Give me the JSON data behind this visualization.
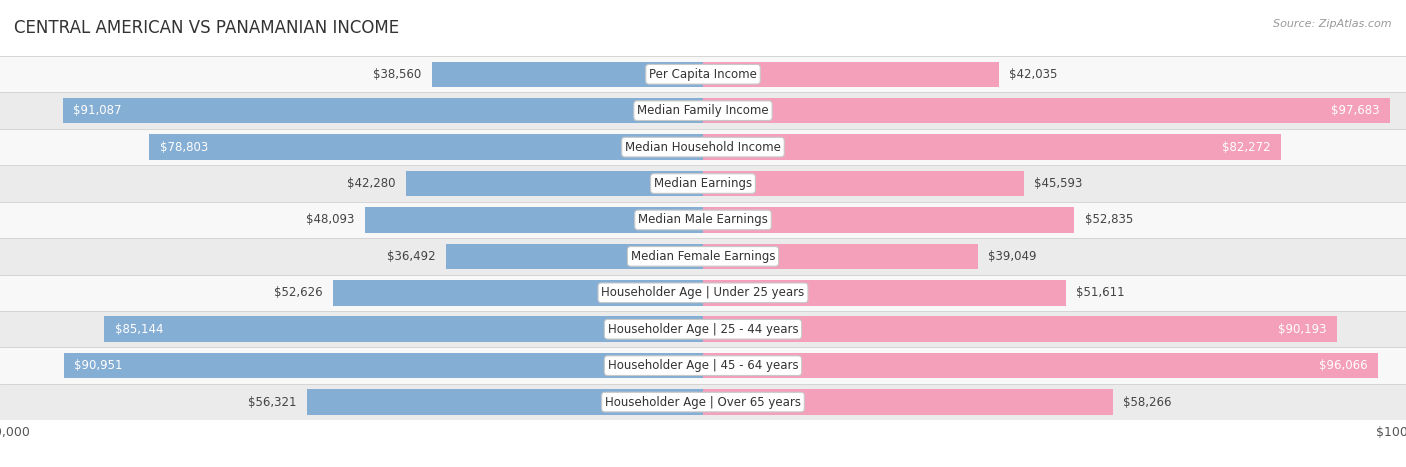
{
  "title": "CENTRAL AMERICAN VS PANAMANIAN INCOME",
  "source": "Source: ZipAtlas.com",
  "categories": [
    "Per Capita Income",
    "Median Family Income",
    "Median Household Income",
    "Median Earnings",
    "Median Male Earnings",
    "Median Female Earnings",
    "Householder Age | Under 25 years",
    "Householder Age | 25 - 44 years",
    "Householder Age | 45 - 64 years",
    "Householder Age | Over 65 years"
  ],
  "central_american": [
    38560,
    91087,
    78803,
    42280,
    48093,
    36492,
    52626,
    85144,
    90951,
    56321
  ],
  "panamanian": [
    42035,
    97683,
    82272,
    45593,
    52835,
    39049,
    51611,
    90193,
    96066,
    58266
  ],
  "max_value": 100000,
  "blue_color": "#85aed4",
  "pink_color": "#f4a0bb",
  "bg_row_light": "#ebebeb",
  "bg_row_white": "#f8f8f8",
  "label_fontsize": 8.5,
  "value_fontsize": 8.5,
  "title_fontsize": 12,
  "inside_threshold": 65000
}
